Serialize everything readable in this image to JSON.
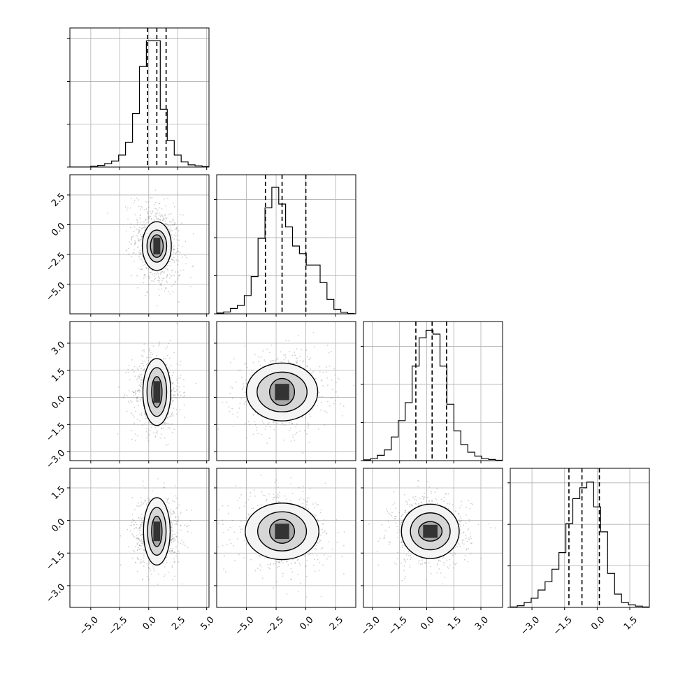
{
  "chart_data": {
    "type": "corner",
    "grid": true,
    "colors": {
      "line": "#000000",
      "grid": "#b0b0b0",
      "scatter": "#555555"
    },
    "parameters": [
      {
        "range": [
          -6.8,
          5.2
        ],
        "ticks": [
          -5.0,
          -2.5,
          0.0,
          2.5,
          5.0
        ],
        "tick_labels": [
          "−5.0",
          "−2.5",
          "0.0",
          "2.5",
          "5.0"
        ]
      },
      {
        "range": [
          -7.5,
          4.2
        ],
        "ticks": [
          -5.0,
          -2.5,
          0.0,
          2.5
        ],
        "tick_labels": [
          "−5.0",
          "−2.5",
          "0.0",
          "2.5"
        ]
      },
      {
        "range": [
          -3.5,
          4.2
        ],
        "ticks": [
          -3.0,
          -1.5,
          0.0,
          1.5,
          3.0
        ],
        "tick_labels": [
          "−3.0",
          "−1.5",
          "0.0",
          "1.5",
          "3.0"
        ]
      },
      {
        "range": [
          -4.0,
          2.4
        ],
        "ticks": [
          -3.0,
          -1.5,
          0.0,
          1.5
        ],
        "tick_labels": [
          "−3.0",
          "−1.5",
          "0.0",
          "1.5"
        ]
      }
    ],
    "marginals": [
      {
        "param": 0,
        "bin_start": -6.8,
        "bin_width": 0.6,
        "ymax": 3.25,
        "counts": [
          0,
          0,
          0,
          0.02,
          0.04,
          0.08,
          0.14,
          0.28,
          0.58,
          1.25,
          2.35,
          2.95,
          2.95,
          1.35,
          0.62,
          0.28,
          0.12,
          0.05,
          0.03,
          0.01
        ],
        "quantiles": [
          -0.1,
          0.7,
          1.5
        ]
      },
      {
        "param": 1,
        "bin_start": -7.5,
        "bin_width": 0.58,
        "ymax": 3.65,
        "counts": [
          0.02,
          0.05,
          0.14,
          0.22,
          0.48,
          0.98,
          1.98,
          2.78,
          3.32,
          2.88,
          2.28,
          1.78,
          1.58,
          1.28,
          1.28,
          0.82,
          0.38,
          0.12,
          0.04,
          0.01
        ],
        "quantiles": [
          -3.4,
          -2.0,
          0.0
        ]
      },
      {
        "param": 2,
        "bin_start": -3.5,
        "bin_width": 0.385,
        "ymax": 3.65,
        "counts": [
          0.02,
          0.05,
          0.14,
          0.28,
          0.62,
          1.05,
          1.52,
          2.48,
          3.22,
          3.42,
          3.32,
          2.48,
          1.48,
          0.78,
          0.42,
          0.22,
          0.12,
          0.05,
          0.03,
          0.01
        ],
        "quantiles": [
          -0.6,
          0.3,
          1.1
        ]
      },
      {
        "param": 3,
        "bin_start": -4.0,
        "bin_width": 0.32,
        "ymax": 3.35,
        "counts": [
          0.01,
          0.04,
          0.12,
          0.22,
          0.42,
          0.62,
          0.92,
          1.32,
          2.02,
          2.62,
          2.88,
          3.02,
          2.42,
          1.82,
          0.82,
          0.32,
          0.12,
          0.06,
          0.03,
          0.01
        ],
        "quantiles": [
          -1.3,
          -0.7,
          0.1
        ]
      }
    ],
    "pairs": [
      {
        "x": 0,
        "y": 1,
        "mean": [
          0.7,
          -1.8
        ],
        "sigma": [
          1.0,
          1.8
        ],
        "rho": -0.25,
        "contours": [
          [
            0.55,
            0.95
          ],
          [
            0.85,
            1.35
          ],
          [
            1.25,
            2.05
          ]
        ],
        "dark": [
          0.3,
          0.7
        ]
      },
      {
        "x": 0,
        "y": 2,
        "mean": [
          0.7,
          0.3
        ],
        "sigma": [
          1.0,
          1.05
        ],
        "rho": 0.0,
        "contours": [
          [
            0.45,
            0.85
          ],
          [
            0.85,
            1.35
          ],
          [
            1.2,
            1.85
          ]
        ],
        "dark": [
          0.3,
          0.6
        ]
      },
      {
        "x": 0,
        "y": 3,
        "mean": [
          0.7,
          -0.5
        ],
        "sigma": [
          1.0,
          0.8
        ],
        "rho": 0.0,
        "contours": [
          [
            0.45,
            0.7
          ],
          [
            0.8,
            1.1
          ],
          [
            1.15,
            1.55
          ]
        ],
        "dark": [
          0.3,
          0.45
        ]
      },
      {
        "x": 1,
        "y": 2,
        "mean": [
          -2.0,
          0.3
        ],
        "sigma": [
          1.9,
          1.05
        ],
        "rho": 0.05,
        "contours": [
          [
            1.05,
            0.75
          ],
          [
            2.1,
            1.1
          ],
          [
            3.0,
            1.6
          ]
        ],
        "dark": [
          0.6,
          0.45
        ]
      },
      {
        "x": 1,
        "y": 3,
        "mean": [
          -2.0,
          -0.5
        ],
        "sigma": [
          1.9,
          0.8
        ],
        "rho": -0.1,
        "contours": [
          [
            1.05,
            0.55
          ],
          [
            2.05,
            0.9
          ],
          [
            3.1,
            1.3
          ]
        ],
        "dark": [
          0.6,
          0.35
        ]
      },
      {
        "x": 2,
        "y": 3,
        "mean": [
          0.2,
          -0.5
        ],
        "sigma": [
          1.05,
          0.8
        ],
        "rho": -0.05,
        "contours": [
          [
            0.65,
            0.45
          ],
          [
            1.1,
            0.85
          ],
          [
            1.6,
            1.25
          ]
        ],
        "dark": [
          0.4,
          0.3
        ]
      }
    ]
  }
}
